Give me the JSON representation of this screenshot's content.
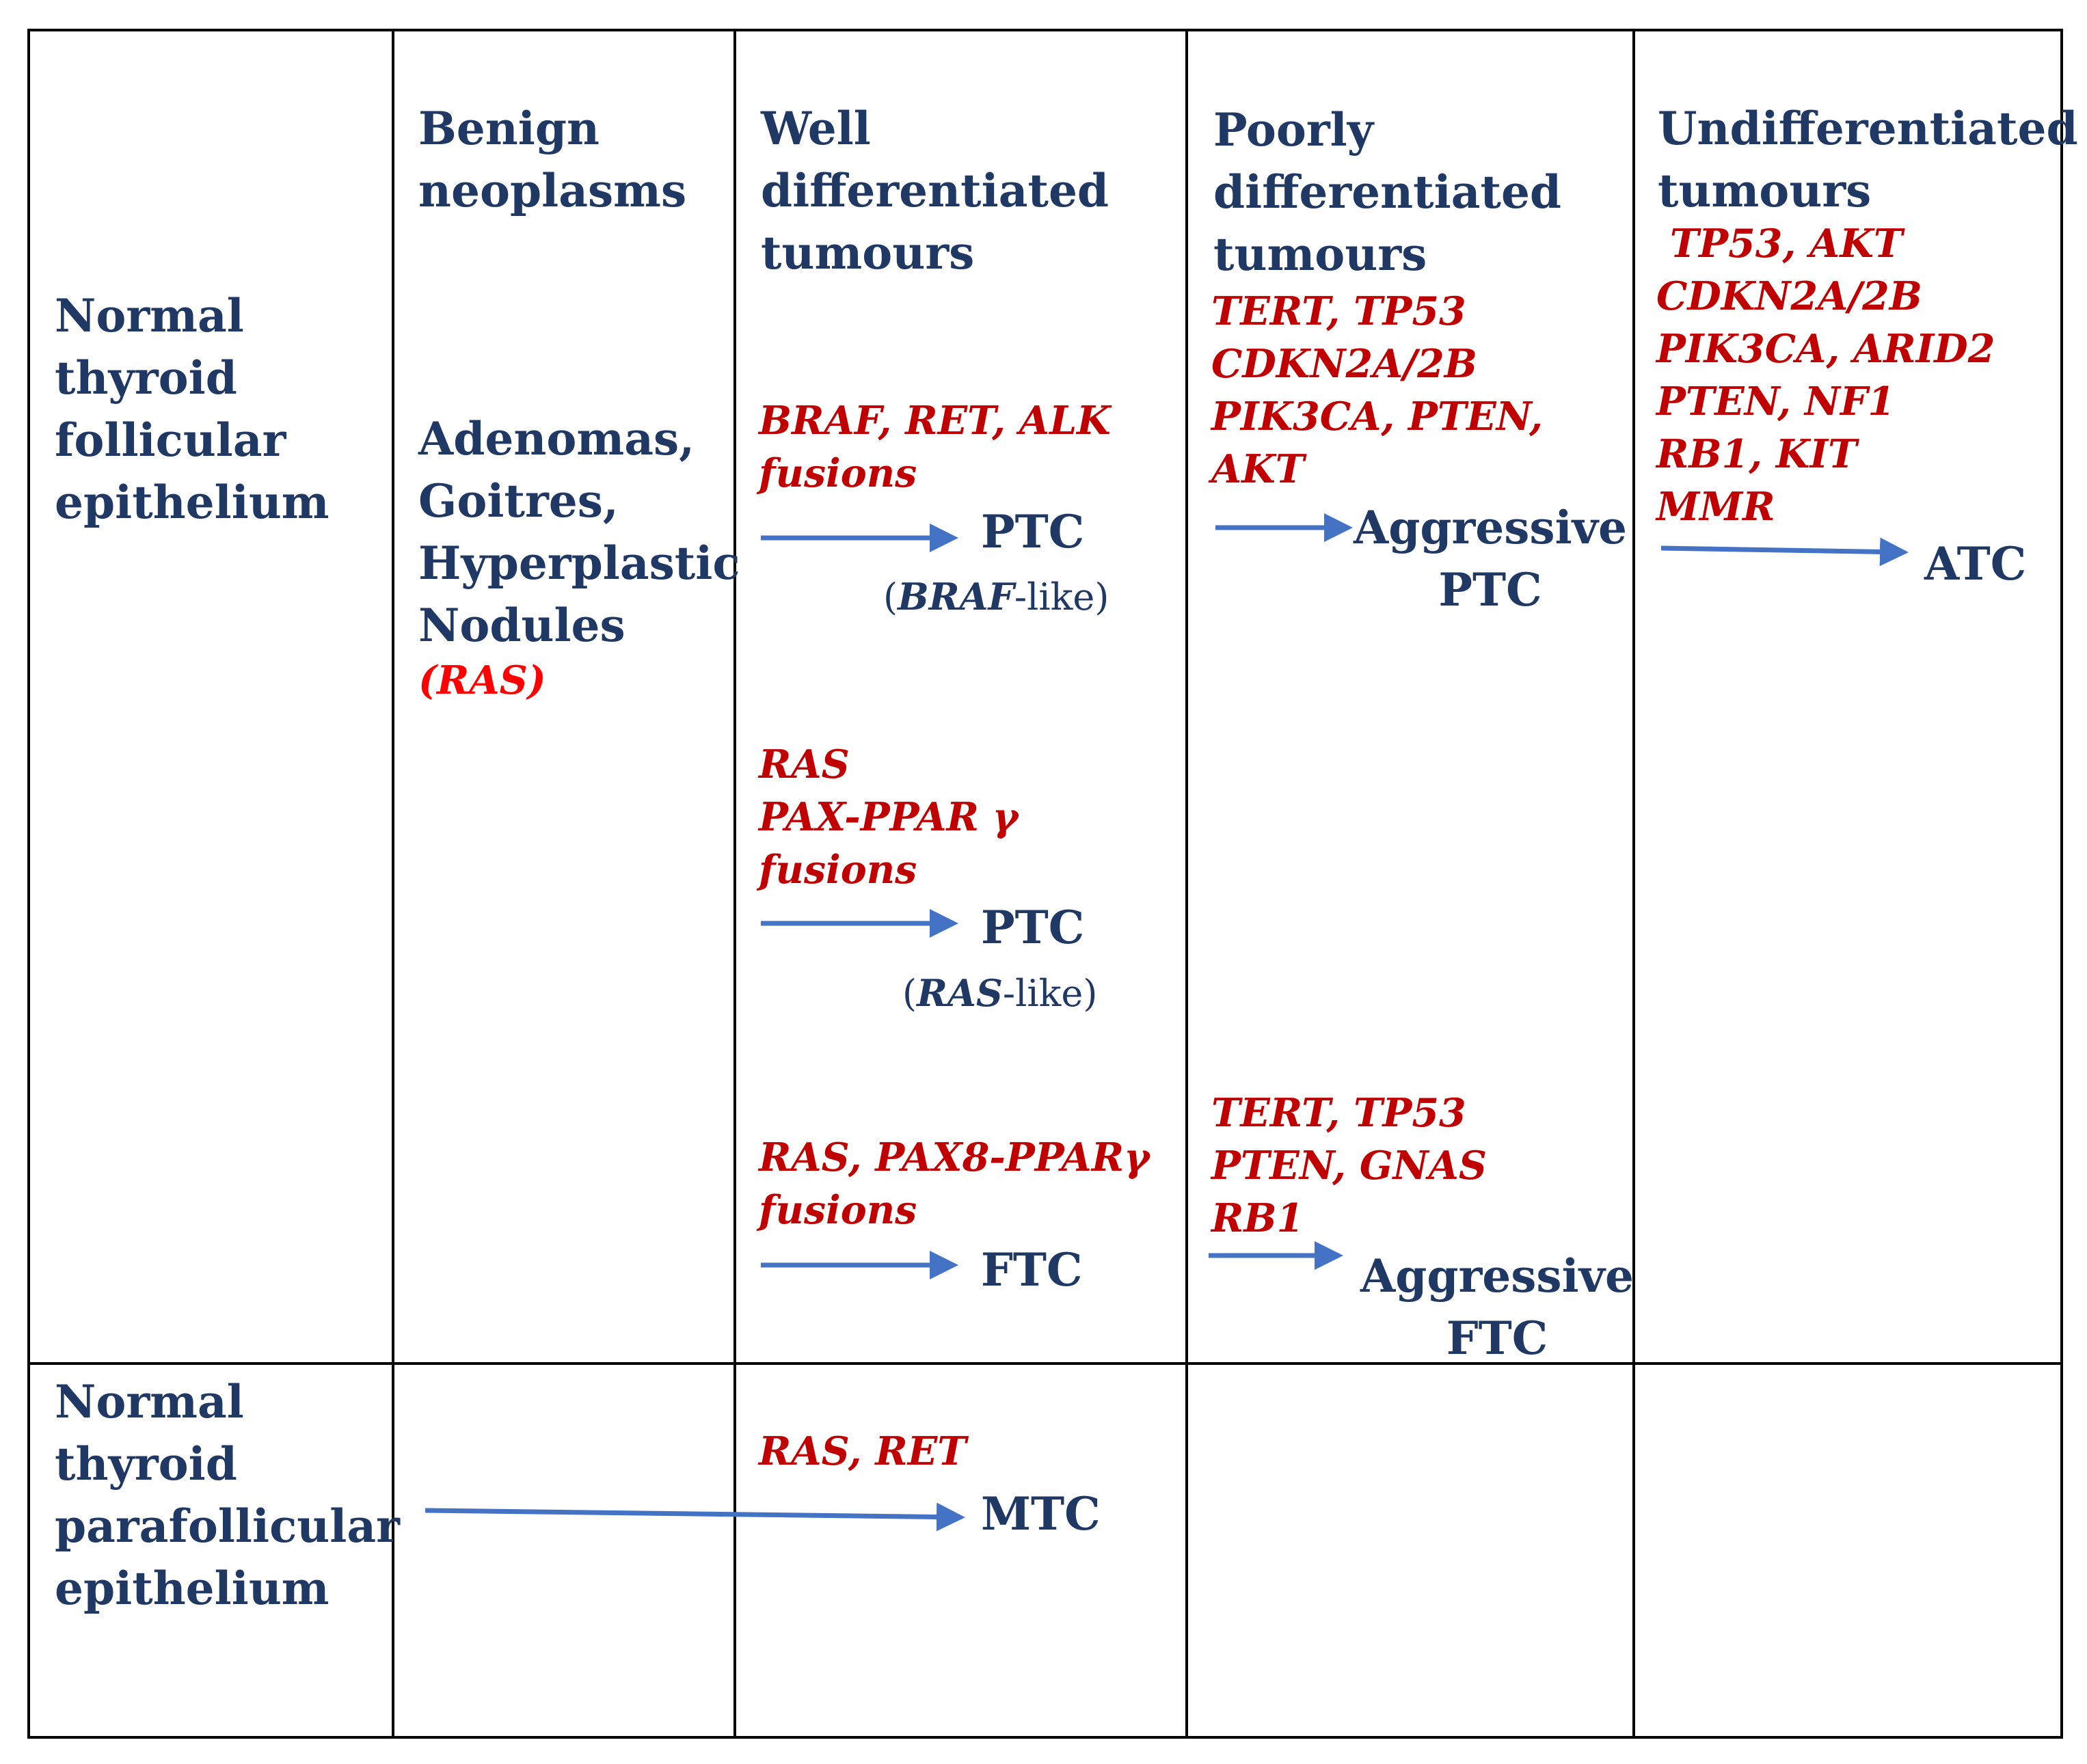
{
  "column_headers": {
    "benign": "Benign\nneoplasms",
    "well": "Well\ndifferentiated\ntumours",
    "poor": "Poorly\ndifferentiated\ntumours",
    "undiff": "Undifferentiated\ntumours"
  },
  "row_labels": {
    "follicular": "Normal\nthyroid\nfollicular\nepithelium",
    "parafollicular": "Normal\nthyroid\nparafollicular\nepithelium"
  },
  "benign_lesions": "Adenomas,\nGoitres,\nHyperplastic\nNodules",
  "benign_gene": "(RAS)",
  "well_pathways": [
    {
      "genes": "BRAF, RET, ALK\nfusions",
      "outcome": "PTC",
      "subtype_gene": "BRAF",
      "subtype_suffix": "-like"
    },
    {
      "genes": "RAS\nPAX-PPAR γ\nfusions",
      "outcome": "PTC",
      "subtype_gene": "RAS",
      "subtype_suffix": "-like"
    },
    {
      "genes": "RAS, PAX8-PPARγ\nfusions",
      "outcome": "FTC"
    }
  ],
  "poor_pathways": [
    {
      "genes": "TERT, TP53\nCDKN2A/2B\nPIK3CA, PTEN,\nAKT",
      "outcome": "Aggressive\nPTC"
    },
    {
      "genes": "TERT, TP53\nPTEN, GNAS\nRB1",
      "outcome": "Aggressive\nFTC"
    }
  ],
  "undiff_pathway": {
    "genes": " TP53, AKT\nCDKN2A/2B\nPIK3CA, ARID2\nPTEN, NF1\nRB1, KIT\nMMR",
    "outcome": "ATC"
  },
  "medullary_pathway": {
    "genes": "RAS, RET",
    "outcome": "MTC"
  },
  "colors": {
    "header": "#1f3864",
    "gene": "#c00000",
    "gene_benign": "#ff0000",
    "arrow": "#4472c4",
    "grid": "#000000"
  }
}
